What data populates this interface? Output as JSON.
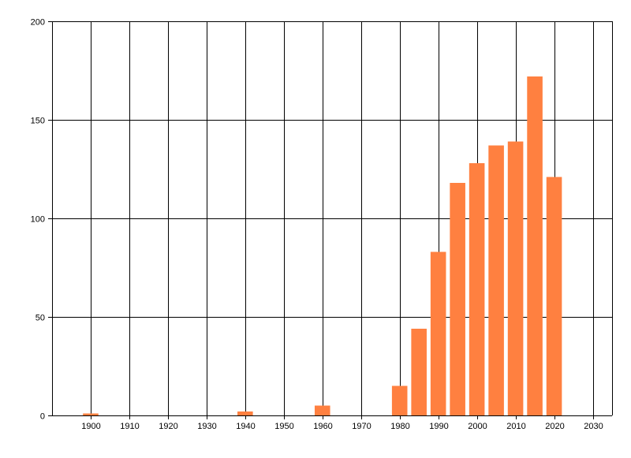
{
  "chart_data": {
    "type": "bar",
    "title": "",
    "xlabel": "",
    "ylabel": "",
    "x": [
      1900,
      1940,
      1960,
      1980,
      1985,
      1990,
      1995,
      2000,
      2005,
      2010,
      2015,
      2020
    ],
    "values": [
      1,
      2,
      5,
      15,
      44,
      83,
      118,
      128,
      137,
      139,
      172,
      121
    ],
    "bar_width_years": 4,
    "xlim": [
      1890,
      2035
    ],
    "ylim": [
      0,
      200
    ],
    "xticks": [
      "1900",
      "1910",
      "1920",
      "1930",
      "1940",
      "1950",
      "1960",
      "1970",
      "1980",
      "1990",
      "2000",
      "2010",
      "2020",
      "2030"
    ],
    "yticks": [
      "0",
      "50",
      "100",
      "150",
      "200"
    ],
    "grid": true,
    "legend": "none",
    "bar_color": "#FF8040",
    "grid_color": "#000000"
  }
}
